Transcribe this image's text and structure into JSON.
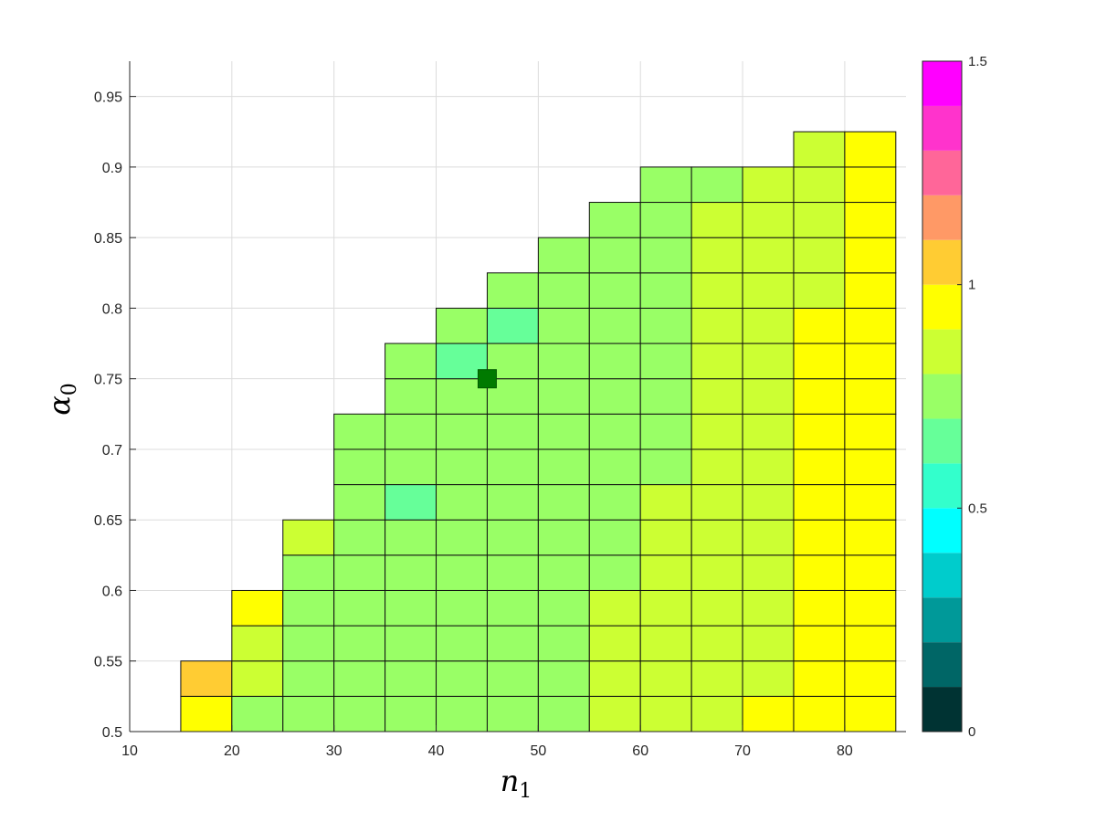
{
  "chart_data": {
    "type": "heatmap",
    "xlabel": "n",
    "xlabel_sub": "1",
    "ylabel": "α",
    "ylabel_sub": "0",
    "xlim": [
      10,
      86
    ],
    "ylim": [
      0.5,
      0.975
    ],
    "x_ticks": [
      "10",
      "20",
      "30",
      "40",
      "50",
      "60",
      "70",
      "80"
    ],
    "y_ticks": [
      "0.5",
      "0.55",
      "0.6",
      "0.65",
      "0.7",
      "0.75",
      "0.8",
      "0.85",
      "0.9",
      "0.95"
    ],
    "grid": true,
    "cell_x_centers": [
      17.5,
      22.5,
      27.5,
      32.5,
      37.5,
      42.5,
      47.5,
      52.5,
      57.5,
      62.5,
      67.5,
      72.5,
      77.5,
      82.5
    ],
    "cell_y_centers": [
      0.5125,
      0.5375,
      0.5625,
      0.5875,
      0.6125,
      0.6375,
      0.6625,
      0.6875,
      0.7125,
      0.7375,
      0.7625,
      0.7875,
      0.8125,
      0.8375,
      0.8625,
      0.8875,
      0.9125
    ],
    "cell_width": 5,
    "cell_height": 0.025,
    "values": [
      [
        0.95,
        0.75,
        0.75,
        0.75,
        0.75,
        0.75,
        0.75,
        0.75,
        0.85,
        0.85,
        0.85,
        0.95,
        0.95,
        0.95
      ],
      [
        1.05,
        0.85,
        0.75,
        0.75,
        0.75,
        0.75,
        0.75,
        0.75,
        0.85,
        0.85,
        0.85,
        0.85,
        0.95,
        0.95
      ],
      [
        null,
        0.85,
        0.75,
        0.75,
        0.75,
        0.75,
        0.75,
        0.75,
        0.85,
        0.85,
        0.85,
        0.85,
        0.95,
        0.95
      ],
      [
        null,
        0.95,
        0.75,
        0.75,
        0.75,
        0.75,
        0.75,
        0.75,
        0.85,
        0.85,
        0.85,
        0.85,
        0.95,
        0.95
      ],
      [
        null,
        null,
        0.75,
        0.75,
        0.75,
        0.75,
        0.75,
        0.75,
        0.75,
        0.85,
        0.85,
        0.85,
        0.95,
        0.95
      ],
      [
        null,
        null,
        0.85,
        0.75,
        0.75,
        0.75,
        0.75,
        0.75,
        0.75,
        0.85,
        0.85,
        0.85,
        0.95,
        0.95
      ],
      [
        null,
        null,
        null,
        0.75,
        0.65,
        0.75,
        0.75,
        0.75,
        0.75,
        0.85,
        0.85,
        0.85,
        0.95,
        0.95
      ],
      [
        null,
        null,
        null,
        0.75,
        0.75,
        0.75,
        0.75,
        0.75,
        0.75,
        0.75,
        0.85,
        0.85,
        0.95,
        0.95
      ],
      [
        null,
        null,
        null,
        0.75,
        0.75,
        0.75,
        0.75,
        0.75,
        0.75,
        0.75,
        0.85,
        0.85,
        0.95,
        0.95
      ],
      [
        null,
        null,
        null,
        null,
        0.75,
        0.75,
        0.75,
        0.75,
        0.75,
        0.75,
        0.85,
        0.85,
        0.95,
        0.95
      ],
      [
        null,
        null,
        null,
        null,
        0.75,
        0.65,
        0.75,
        0.75,
        0.75,
        0.75,
        0.85,
        0.85,
        0.95,
        0.95
      ],
      [
        null,
        null,
        null,
        null,
        null,
        0.75,
        0.65,
        0.75,
        0.75,
        0.75,
        0.85,
        0.85,
        0.95,
        0.95
      ],
      [
        null,
        null,
        null,
        null,
        null,
        null,
        0.75,
        0.75,
        0.75,
        0.75,
        0.85,
        0.85,
        0.85,
        0.95
      ],
      [
        null,
        null,
        null,
        null,
        null,
        null,
        null,
        0.75,
        0.75,
        0.75,
        0.85,
        0.85,
        0.85,
        0.95
      ],
      [
        null,
        null,
        null,
        null,
        null,
        null,
        null,
        null,
        0.75,
        0.75,
        0.85,
        0.85,
        0.85,
        0.95
      ],
      [
        null,
        null,
        null,
        null,
        null,
        null,
        null,
        null,
        null,
        0.75,
        0.75,
        0.85,
        0.85,
        0.95
      ],
      [
        null,
        null,
        null,
        null,
        null,
        null,
        null,
        null,
        null,
        null,
        null,
        null,
        0.85,
        0.95
      ]
    ],
    "marker": {
      "x": 45,
      "y": 0.75,
      "color": "#007a00"
    },
    "colorbar": {
      "range": [
        0,
        1.5
      ],
      "ticks": [
        "0",
        "0.5",
        "1",
        "1.5"
      ],
      "levels": 15,
      "colors": [
        "#003333",
        "#006666",
        "#009999",
        "#00cccc",
        "#00ffff",
        "#33ffcc",
        "#66ff99",
        "#99ff66",
        "#ccff33",
        "#ffff00",
        "#ffcc33",
        "#ff9966",
        "#ff6699",
        "#ff33cc",
        "#ff00ff"
      ]
    }
  }
}
